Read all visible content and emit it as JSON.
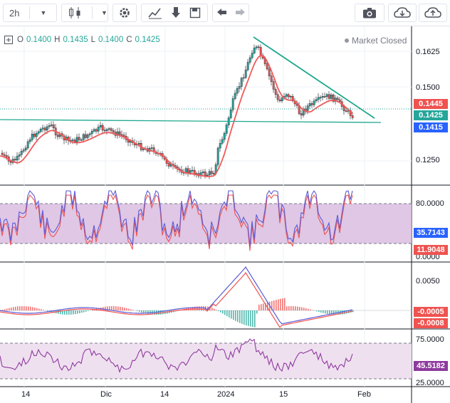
{
  "toolbar": {
    "interval": "2h"
  },
  "legend": {
    "open_label": "O",
    "open": "0.1400",
    "high_label": "H",
    "high": "0.1435",
    "low_label": "L",
    "low": "0.1400",
    "close_label": "C",
    "close": "0.1425",
    "market_status": "Market Closed"
  },
  "price_axis": {
    "ticks": [
      "0.1625",
      "0.1500",
      "0.1250"
    ],
    "badges": {
      "red": "0.1445",
      "green": "0.1425",
      "blue": "0.1415"
    }
  },
  "rsi_axis": {
    "ticks": [
      "80.0000",
      "0.0000"
    ],
    "badges": {
      "blue": "35.7143",
      "red": "11.9048"
    }
  },
  "macd_axis": {
    "ticks": [
      "0.0050"
    ],
    "badges": {
      "red1": "-0.0005",
      "red2": "-0.0008"
    }
  },
  "osc_axis": {
    "ticks": [
      "75.0000",
      "25.0000"
    ],
    "badge": "45.5182"
  },
  "time_axis": {
    "ticks": [
      "14",
      "Dic",
      "14",
      "2024",
      "15",
      "Feb"
    ]
  },
  "colors": {
    "up": "#26a69a",
    "down": "#ef5350",
    "ma": "#f05a5a",
    "trend": "#1fa88e",
    "rsi_fill": "#d9bde0",
    "osc_fill": "#efe0f0",
    "blue": "#2962ff"
  }
}
